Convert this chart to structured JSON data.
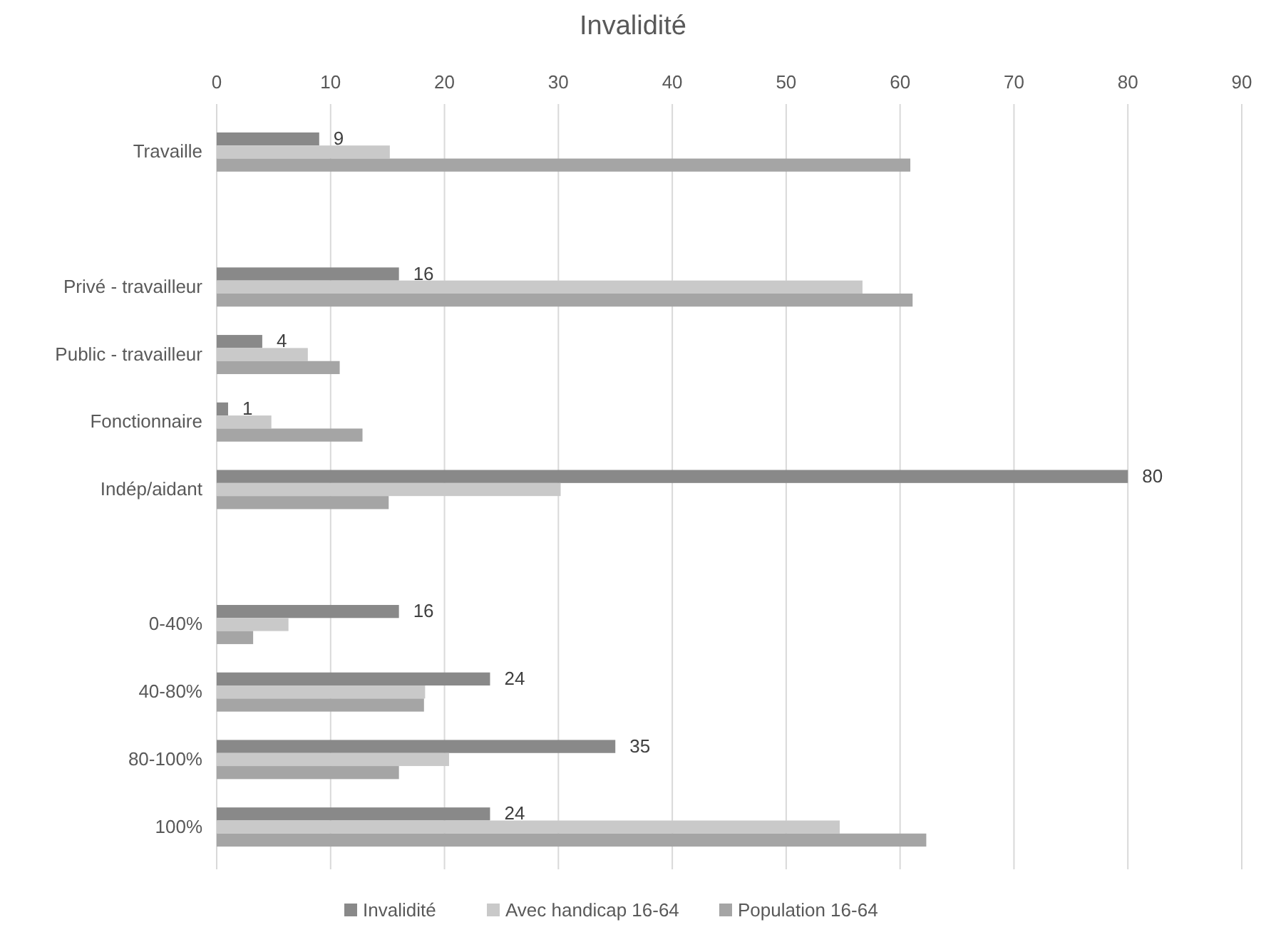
{
  "chart_data": {
    "type": "bar",
    "orientation": "horizontal",
    "title": "Invalidité",
    "categories": [
      "Travaille",
      null,
      "Privé - travailleur",
      "Public - travailleur",
      "Fonctionnaire",
      "Indép/aidant",
      null,
      "0-40%",
      "40-80%",
      "80-100%",
      "100%"
    ],
    "series": [
      {
        "name": "Invalidité",
        "color": "#898989",
        "values": [
          9,
          null,
          16,
          4,
          1,
          80,
          null,
          16,
          24,
          35,
          24
        ],
        "value_labels": [
          "9",
          null,
          "16",
          "4",
          "1",
          "80",
          null,
          "16",
          "24",
          "35",
          "24"
        ]
      },
      {
        "name": "Avec handicap 16-64",
        "color": "#c9c9c9",
        "values": [
          15.2,
          null,
          56.7,
          8.0,
          4.8,
          30.2,
          null,
          6.3,
          18.3,
          20.4,
          54.7
        ]
      },
      {
        "name": "Population 16-64",
        "color": "#a5a5a5",
        "values": [
          60.9,
          null,
          61.1,
          10.8,
          12.8,
          15.1,
          null,
          3.2,
          18.2,
          16.0,
          62.3
        ]
      }
    ],
    "xlim": [
      0,
      90
    ],
    "xticks": [
      0,
      10,
      20,
      30,
      40,
      50,
      60,
      70,
      80,
      90
    ],
    "grid": "x",
    "legend": "bottom"
  }
}
